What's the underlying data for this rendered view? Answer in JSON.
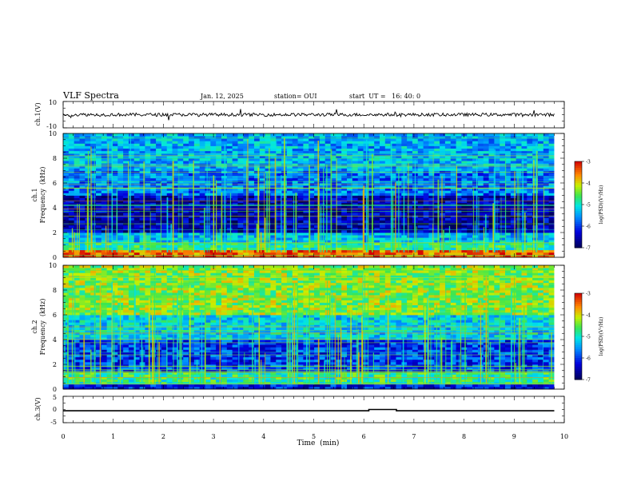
{
  "header": {
    "title": "VLF Spectra",
    "date": "Jan. 12, 2025",
    "station": "station= OUI",
    "start_ut": "start  UT =   16: 40: 0"
  },
  "chart_data": [
    {
      "type": "line",
      "id": "waveform-ch1",
      "ylabel": "ch.1(V)",
      "ylim": [
        -10,
        10
      ],
      "yticks": [
        "10",
        "-10"
      ],
      "baseline": 0,
      "end_min": 9.8
    },
    {
      "type": "heatmap",
      "id": "spectrogram-ch1",
      "ylabel": "ch.1\nFrequency (kHz)",
      "ylabel_lines": [
        "ch.1",
        "Frequency  (kHz)"
      ],
      "ylim": [
        0,
        10
      ],
      "yticks": [
        "0",
        "2",
        "4",
        "6",
        "8",
        "10"
      ],
      "x_end_min": 9.8,
      "colorbar": {
        "label": "log(PSD)(V²/Hz)",
        "ticks": [
          "-3",
          "-4",
          "-5",
          "-6",
          "-7"
        ],
        "range": [
          -7,
          -3
        ]
      }
    },
    {
      "type": "heatmap",
      "id": "spectrogram-ch2",
      "ylabel_lines": [
        "ch.2",
        "Frequency  (kHz)"
      ],
      "ylim": [
        0,
        10
      ],
      "yticks": [
        "0",
        "2",
        "4",
        "6",
        "8",
        "10"
      ],
      "x_end_min": 9.8,
      "colorbar": {
        "label": "log(PSD)(V²/Hz)",
        "ticks": [
          "-3",
          "-4",
          "-5",
          "-6",
          "-7"
        ],
        "range": [
          -7,
          -3
        ]
      }
    },
    {
      "type": "line",
      "id": "waveform-ch3",
      "ylabel": "ch.3(V)",
      "ylim": [
        -5,
        5
      ],
      "yticks": [
        "5",
        "0",
        "-5"
      ],
      "series": [
        {
          "x": [
            0,
            6.1,
            6.1,
            6.65,
            6.65,
            9.8
          ],
          "y": [
            -0.5,
            -0.5,
            0,
            0,
            -0.5,
            -0.5
          ]
        }
      ]
    }
  ],
  "xaxis": {
    "label": "Time  (min)",
    "ticks": [
      "0",
      "1",
      "2",
      "3",
      "4",
      "5",
      "6",
      "7",
      "8",
      "9",
      "10"
    ],
    "range": [
      0,
      10
    ]
  }
}
